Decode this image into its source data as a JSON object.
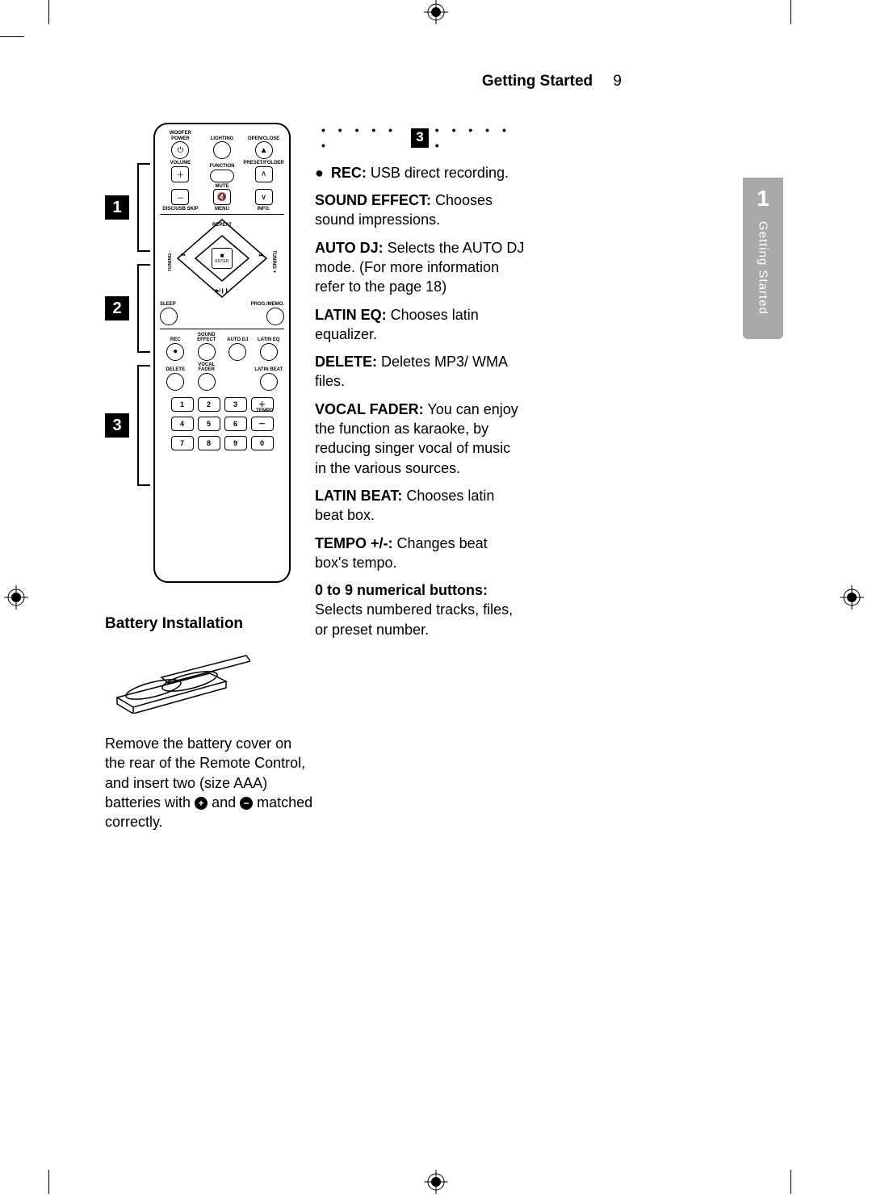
{
  "header": {
    "section": "Getting Started",
    "page": "9"
  },
  "sideTab": {
    "number": "1",
    "text": "Getting Started"
  },
  "section3": {
    "badge": "3",
    "items": [
      {
        "label": "REC:",
        "text": " USB direct recording.",
        "bullet": true
      },
      {
        "label": "SOUND EFFECT:",
        "text": " Chooses sound impressions."
      },
      {
        "label": "AUTO DJ:",
        "text": " Selects the AUTO DJ mode. (For more information refer to the page 18)"
      },
      {
        "label": "LATIN EQ:",
        "text": " Chooses latin equalizer."
      },
      {
        "label": "DELETE:",
        "text": " Deletes MP3/ WMA files."
      },
      {
        "label": "VOCAL FADER:",
        "text": " You can enjoy the function as karaoke, by reducing singer vocal of music in the various sources."
      },
      {
        "label": "LATIN BEAT:",
        "text": " Chooses latin beat box."
      },
      {
        "label": "TEMPO +/-:",
        "text": " Changes beat box's tempo."
      },
      {
        "label": "0 to 9 numerical buttons:",
        "text": " Selects numbered tracks, files, or preset number."
      }
    ]
  },
  "remote": {
    "row1": [
      "WOOFER POWER",
      "LIGHTING",
      "OPEN/CLOSE"
    ],
    "row2": [
      "VOLUME",
      "FUNCTION",
      "PRESET/FOLDER"
    ],
    "mute": "MUTE",
    "row3": [
      "DISC/USB SKIP",
      "MENU",
      "INFO."
    ],
    "repeat": "REPEAT",
    "enter": "ENTER",
    "tuningMinus": "TUNING -",
    "tuningPlus": "TUNING +",
    "sleep": "SLEEP",
    "progMemo": "PROG./MEMO.",
    "row4": [
      "REC",
      "SOUND EFFECT",
      "AUTO DJ",
      "LATIN EQ"
    ],
    "row5": [
      "DELETE",
      "VOCAL FADER",
      "",
      "LATIN BEAT"
    ],
    "tempo": "TEMPO",
    "nums": [
      [
        "1",
        "2",
        "3"
      ],
      [
        "4",
        "5",
        "6"
      ],
      [
        "7",
        "8",
        "9",
        "0"
      ]
    ]
  },
  "regions": {
    "r1": "1",
    "r2": "2",
    "r3": "3"
  },
  "battery": {
    "title": "Battery Installation",
    "textBefore": "Remove the battery cover on the rear of the Remote Control, and insert two (size AAA) batteries with ",
    "and": " and ",
    "textAfter": " matched correctly."
  }
}
